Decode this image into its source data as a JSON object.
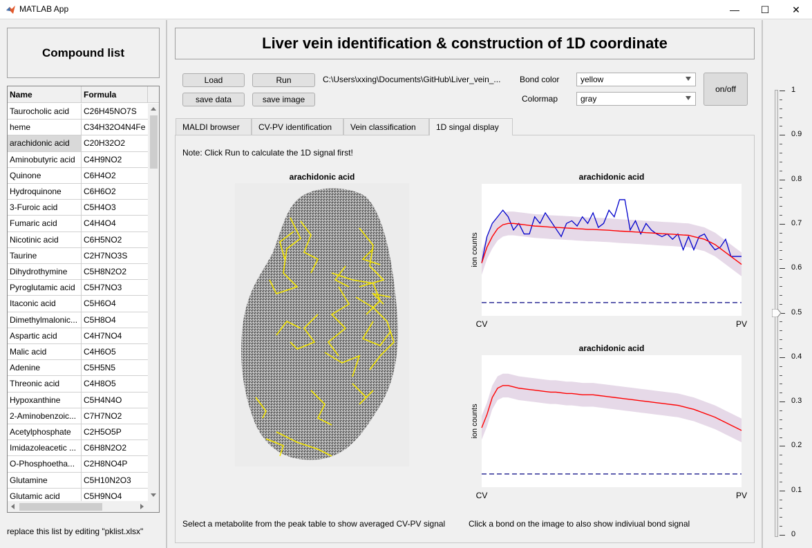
{
  "window": {
    "title": "MATLAB App"
  },
  "sidebar": {
    "title": "Compound list",
    "columns": [
      "Name",
      "Formula"
    ],
    "rows": [
      [
        "Taurocholic acid",
        "C26H45NO7S"
      ],
      [
        "heme",
        "C34H32O4N4Fe"
      ],
      [
        "arachidonic acid",
        "C20H32O2"
      ],
      [
        "Aminobutyric acid",
        "C4H9NO2"
      ],
      [
        "Quinone",
        "C6H4O2"
      ],
      [
        "Hydroquinone",
        "C6H6O2"
      ],
      [
        "3-Furoic acid",
        "C5H4O3"
      ],
      [
        "Fumaric acid",
        "C4H4O4"
      ],
      [
        "Nicotinic acid",
        "C6H5NO2"
      ],
      [
        "Taurine",
        "C2H7NO3S"
      ],
      [
        "Dihydrothymine",
        "C5H8N2O2"
      ],
      [
        "Pyroglutamic acid",
        "C5H7NO3"
      ],
      [
        "Itaconic acid",
        "C5H6O4"
      ],
      [
        "Dimethylmalonic...",
        "C5H8O4"
      ],
      [
        "Aspartic acid",
        "C4H7NO4"
      ],
      [
        "Malic acid",
        "C4H6O5"
      ],
      [
        "Adenine",
        "C5H5N5"
      ],
      [
        "Threonic acid",
        "C4H8O5"
      ],
      [
        "Hypoxanthine",
        "C5H4N4O"
      ],
      [
        "2-Aminobenzoic...",
        "C7H7NO2"
      ],
      [
        "Acetylphosphate",
        "C2H5O5P"
      ],
      [
        "Imidazoleacetic ...",
        "C6H8N2O2"
      ],
      [
        "O-Phosphoetha...",
        "C2H8NO4P"
      ],
      [
        "Glutamine",
        "C5H10N2O3"
      ],
      [
        "Glutamic acid",
        "C5H9NO4"
      ]
    ],
    "selected_row": 2,
    "footer_note": "replace this list by editing \"pklist.xlsx\""
  },
  "header": {
    "title": "Liver vein identification & construction of 1D coordinate"
  },
  "toolbar": {
    "load_label": "Load",
    "run_label": "Run",
    "save_data_label": "save data",
    "save_image_label": "save image",
    "path": "C:\\Users\\xxing\\Documents\\GitHub\\Liver_vein_...",
    "bond_color_label": "Bond color",
    "bond_color_value": "yellow",
    "colormap_label": "Colormap",
    "colormap_value": "gray",
    "onoff_label": "on/off"
  },
  "tabs": [
    {
      "label": "MALDI browser",
      "active": false
    },
    {
      "label": "CV-PV identification",
      "active": false
    },
    {
      "label": "Vein classification",
      "active": false
    },
    {
      "label": "1D singal display",
      "active": true
    }
  ],
  "main": {
    "note": "Note:  Click Run to calculate the 1D signal first!",
    "image_title": "arachidonic acid",
    "bottom_left_note": "Select a  metabolite from the peak table to show averaged CV-PV signal",
    "bottom_right_note": "Click a bond on the image to also show indiviual bond signal"
  },
  "slider": {
    "value": 0.5,
    "ticks": [
      "1",
      "0.9",
      "0.8",
      "0.7",
      "0.6",
      "0.5",
      "0.4",
      "0.3",
      "0.2",
      "0.1",
      "0"
    ]
  },
  "chart_data": [
    {
      "type": "line",
      "title": "arachidonic acid",
      "ylabel": "ion counts",
      "xtick_labels": [
        "CV",
        "PV"
      ],
      "x": [
        0,
        1,
        2,
        3,
        4,
        5,
        6,
        7,
        8,
        9,
        10,
        11,
        12,
        13,
        14,
        15,
        16,
        17,
        18,
        19,
        20,
        21,
        22,
        23,
        24,
        25,
        26,
        27,
        28,
        29,
        30,
        31,
        32,
        33,
        34,
        35,
        36,
        37,
        38,
        39,
        40,
        41,
        42,
        43,
        44,
        45,
        46,
        47,
        48,
        49
      ],
      "ylim": [
        0,
        1
      ],
      "colors": {
        "mean": "#ff0000",
        "bond": "#0000cc",
        "band": "#e6d9e8",
        "baseline": "#000080"
      },
      "series": [
        {
          "values": [
            0.4,
            0.52,
            0.6,
            0.66,
            0.69,
            0.7,
            0.7,
            0.695,
            0.69,
            0.685,
            0.68,
            0.678,
            0.675,
            0.672,
            0.67,
            0.668,
            0.665,
            0.663,
            0.66,
            0.658,
            0.655,
            0.655,
            0.652,
            0.65,
            0.648,
            0.645,
            0.642,
            0.64,
            0.638,
            0.635,
            0.633,
            0.63,
            0.628,
            0.625,
            0.622,
            0.62,
            0.618,
            0.615,
            0.612,
            0.61,
            0.6,
            0.59,
            0.58,
            0.56,
            0.54,
            0.51,
            0.48,
            0.45,
            0.42,
            0.39
          ]
        },
        {
          "values": [
            0.4,
            0.6,
            0.7,
            0.75,
            0.8,
            0.75,
            0.65,
            0.7,
            0.62,
            0.62,
            0.75,
            0.7,
            0.78,
            0.72,
            0.66,
            0.6,
            0.7,
            0.72,
            0.68,
            0.75,
            0.7,
            0.78,
            0.67,
            0.7,
            0.8,
            0.75,
            0.88,
            0.88,
            0.65,
            0.72,
            0.62,
            0.7,
            0.65,
            0.62,
            0.6,
            0.62,
            0.58,
            0.62,
            0.5,
            0.6,
            0.5,
            0.6,
            0.62,
            0.55,
            0.5,
            0.52,
            0.58,
            0.45,
            0.45,
            0.45
          ]
        },
        {
          "values": [
            0.1,
            0.1,
            0.1,
            0.1,
            0.1,
            0.1,
            0.1,
            0.1,
            0.1,
            0.1,
            0.1,
            0.1,
            0.1,
            0.1,
            0.1,
            0.1,
            0.1,
            0.1,
            0.1,
            0.1,
            0.1,
            0.1,
            0.1,
            0.1,
            0.1,
            0.1,
            0.1,
            0.1,
            0.1,
            0.1,
            0.1,
            0.1,
            0.1,
            0.1,
            0.1,
            0.1,
            0.1,
            0.1,
            0.1,
            0.1,
            0.1,
            0.1,
            0.1,
            0.1,
            0.1,
            0.1,
            0.1,
            0.1,
            0.1,
            0.1
          ]
        }
      ],
      "band_half_width": 0.09
    },
    {
      "type": "line",
      "title": "arachidonic acid",
      "ylabel": "ion counts",
      "xtick_labels": [
        "CV",
        "PV"
      ],
      "x": [
        0,
        1,
        2,
        3,
        4,
        5,
        6,
        7,
        8,
        9,
        10,
        11,
        12,
        13,
        14,
        15,
        16,
        17,
        18,
        19,
        20,
        21,
        22,
        23,
        24,
        25,
        26,
        27,
        28,
        29,
        30,
        31,
        32,
        33,
        34,
        35,
        36,
        37,
        38,
        39,
        40,
        41,
        42,
        43,
        44,
        45,
        46,
        47,
        48,
        49
      ],
      "ylim": [
        0,
        1
      ],
      "colors": {
        "mean": "#ff0000",
        "band": "#e6d9e8",
        "baseline": "#000080"
      },
      "series": [
        {
          "values": [
            0.45,
            0.55,
            0.68,
            0.75,
            0.77,
            0.77,
            0.76,
            0.75,
            0.745,
            0.74,
            0.735,
            0.73,
            0.725,
            0.72,
            0.72,
            0.715,
            0.71,
            0.71,
            0.705,
            0.7,
            0.7,
            0.7,
            0.695,
            0.69,
            0.685,
            0.68,
            0.675,
            0.67,
            0.665,
            0.66,
            0.655,
            0.65,
            0.645,
            0.64,
            0.635,
            0.63,
            0.625,
            0.62,
            0.61,
            0.6,
            0.59,
            0.575,
            0.56,
            0.545,
            0.53,
            0.51,
            0.49,
            0.47,
            0.45,
            0.43
          ]
        },
        {
          "values": [
            0.1,
            0.1,
            0.1,
            0.1,
            0.1,
            0.1,
            0.1,
            0.1,
            0.1,
            0.1,
            0.1,
            0.1,
            0.1,
            0.1,
            0.1,
            0.1,
            0.1,
            0.1,
            0.1,
            0.1,
            0.1,
            0.1,
            0.1,
            0.1,
            0.1,
            0.1,
            0.1,
            0.1,
            0.1,
            0.1,
            0.1,
            0.1,
            0.1,
            0.1,
            0.1,
            0.1,
            0.1,
            0.1,
            0.1,
            0.1,
            0.1,
            0.1,
            0.1,
            0.1,
            0.1,
            0.1,
            0.1,
            0.1,
            0.1,
            0.1
          ]
        }
      ],
      "band_half_width": 0.09
    }
  ]
}
